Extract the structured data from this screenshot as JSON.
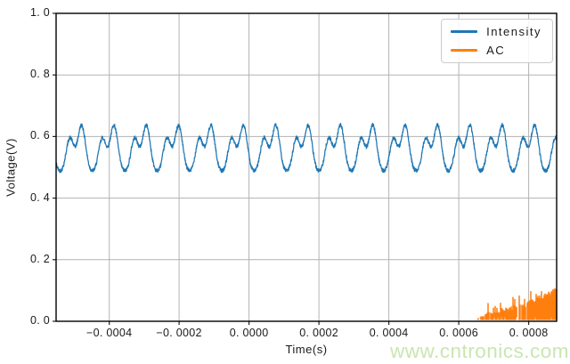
{
  "figure": {
    "background": "#ffffff"
  },
  "watermark": {
    "text": "www.cntronics.com",
    "color": "#c9e6b0"
  },
  "colors": {
    "grid": "#b3b3b3",
    "spine": "#000000",
    "tick": "#222222",
    "text": "#1a1a1a"
  },
  "chart_data": {
    "type": "line",
    "title": "",
    "xlabel": "Time(s)",
    "ylabel": "Voltage(V)",
    "xlim": [
      -0.000552,
      0.00088
    ],
    "ylim": [
      0.0,
      1.0
    ],
    "grid": true,
    "x_ticks": [
      {
        "value": -0.0004,
        "label": "−0. 0004"
      },
      {
        "value": -0.0002,
        "label": "−0. 0002"
      },
      {
        "value": 0.0,
        "label": "0. 0000"
      },
      {
        "value": 0.0002,
        "label": "0. 0002"
      },
      {
        "value": 0.0004,
        "label": "0. 0004"
      },
      {
        "value": 0.0006,
        "label": "0. 0006"
      },
      {
        "value": 0.0008,
        "label": "0. 0008"
      }
    ],
    "y_ticks": [
      {
        "value": 0.0,
        "label": "0. 0"
      },
      {
        "value": 0.2,
        "label": "0. 2"
      },
      {
        "value": 0.4,
        "label": "0. 4"
      },
      {
        "value": 0.6,
        "label": "0. 6"
      },
      {
        "value": 0.8,
        "label": "0. 8"
      },
      {
        "value": 1.0,
        "label": "1. 0"
      }
    ],
    "legend": {
      "position": "upper right",
      "entries": [
        {
          "label": "Intensity",
          "color": "#1f77b4"
        },
        {
          "label": "AC",
          "color": "#ff7f0e"
        }
      ]
    },
    "series": [
      {
        "name": "Intensity",
        "type": "noisy_sine",
        "color": "#1f77b4",
        "x_start": -0.000552,
        "x_end": 0.00088,
        "mean": 0.562,
        "frequency_hz": 10800,
        "phase": 3.7,
        "amplitude": 0.055,
        "harmonic2": 0.033,
        "harmonic2_phase": 2.4,
        "harmonic3": 0.012,
        "harmonic3_phase": 1.0,
        "noise": 0.0062,
        "peak_approx": 0.67,
        "trough_approx": 0.47
      },
      {
        "name": "AC",
        "type": "noisy_staircase",
        "color": "#ff7f0e",
        "x_start": 0.000655,
        "x_end": 0.00088,
        "baseline": 0.004,
        "step": 0.013,
        "gap_probability": 0.06,
        "spike_probability": 0.2,
        "envelope": [
          [
            0.000655,
            0.016
          ],
          [
            0.00069,
            0.022
          ],
          [
            0.000705,
            0.03
          ],
          [
            0.000725,
            0.034
          ],
          [
            0.000745,
            0.042
          ],
          [
            0.000765,
            0.05
          ],
          [
            0.000785,
            0.055
          ],
          [
            0.000805,
            0.063
          ],
          [
            0.000825,
            0.072
          ],
          [
            0.000845,
            0.085
          ],
          [
            0.000862,
            0.095
          ],
          [
            0.00088,
            0.105
          ]
        ]
      }
    ]
  }
}
